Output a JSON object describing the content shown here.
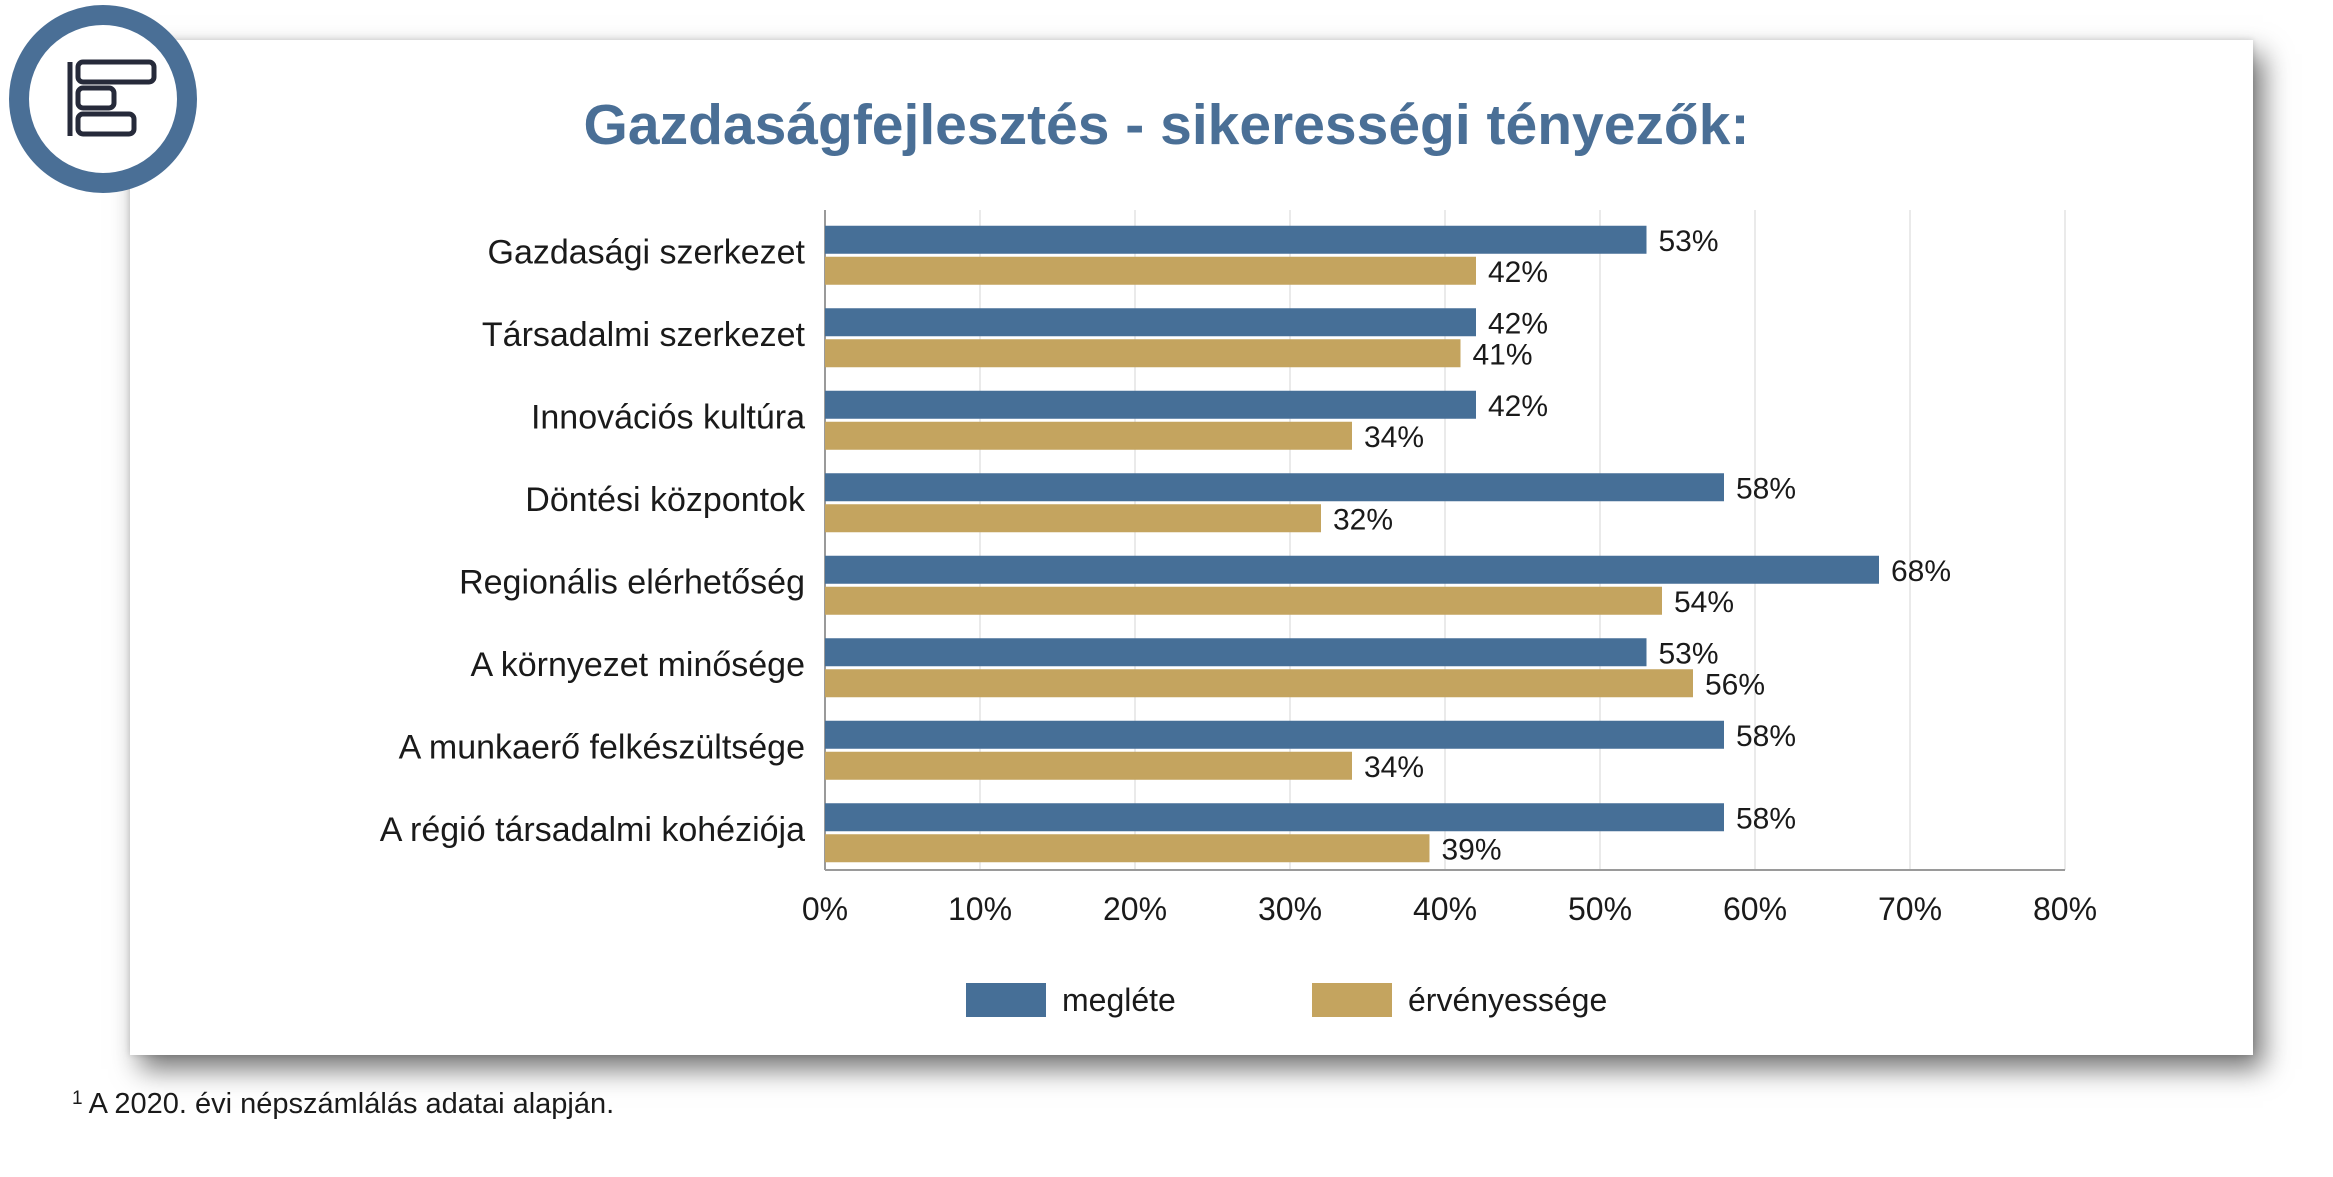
{
  "title": "Gazdaságfejlesztés - sikerességi tényezők:",
  "footnote": {
    "marker": "1",
    "text": "A 2020. évi népszámlálás adatai alapján."
  },
  "colors": {
    "series1": "#466f97",
    "series2": "#c4a45f",
    "title": "#4a6f96",
    "logo_ring": "#4a6f96",
    "grid": "#e3e3e3",
    "axis": "#9a9a9a"
  },
  "logo": {
    "icon": "gantt-chart-icon"
  },
  "chart_data": {
    "type": "bar",
    "orientation": "horizontal",
    "categories": [
      "Gazdasági szerkezet",
      "Társadalmi szerkezet",
      "Innovációs kultúra",
      "Döntési központok",
      "Regionális elérhetőség",
      "A környezet minősége",
      "A munkaerő felkészültsége",
      "A régió társadalmi kohéziója"
    ],
    "series": [
      {
        "name": "megléte",
        "values": [
          53,
          42,
          42,
          58,
          68,
          53,
          58,
          58
        ],
        "labels": [
          "53%",
          "42%",
          "42%",
          "58%",
          "68%",
          "53%",
          "58%",
          "58%"
        ]
      },
      {
        "name": "érvényessége",
        "values": [
          42,
          41,
          34,
          32,
          54,
          56,
          34,
          39
        ],
        "labels": [
          "42%",
          "41%",
          "34%",
          "32%",
          "54%",
          "56%",
          "34%",
          "39%"
        ]
      }
    ],
    "xlim": [
      0,
      80
    ],
    "xticks": [
      "0%",
      "10%",
      "20%",
      "30%",
      "40%",
      "50%",
      "60%",
      "70%",
      "80%"
    ],
    "grid": true,
    "legend": "bottom-center"
  }
}
